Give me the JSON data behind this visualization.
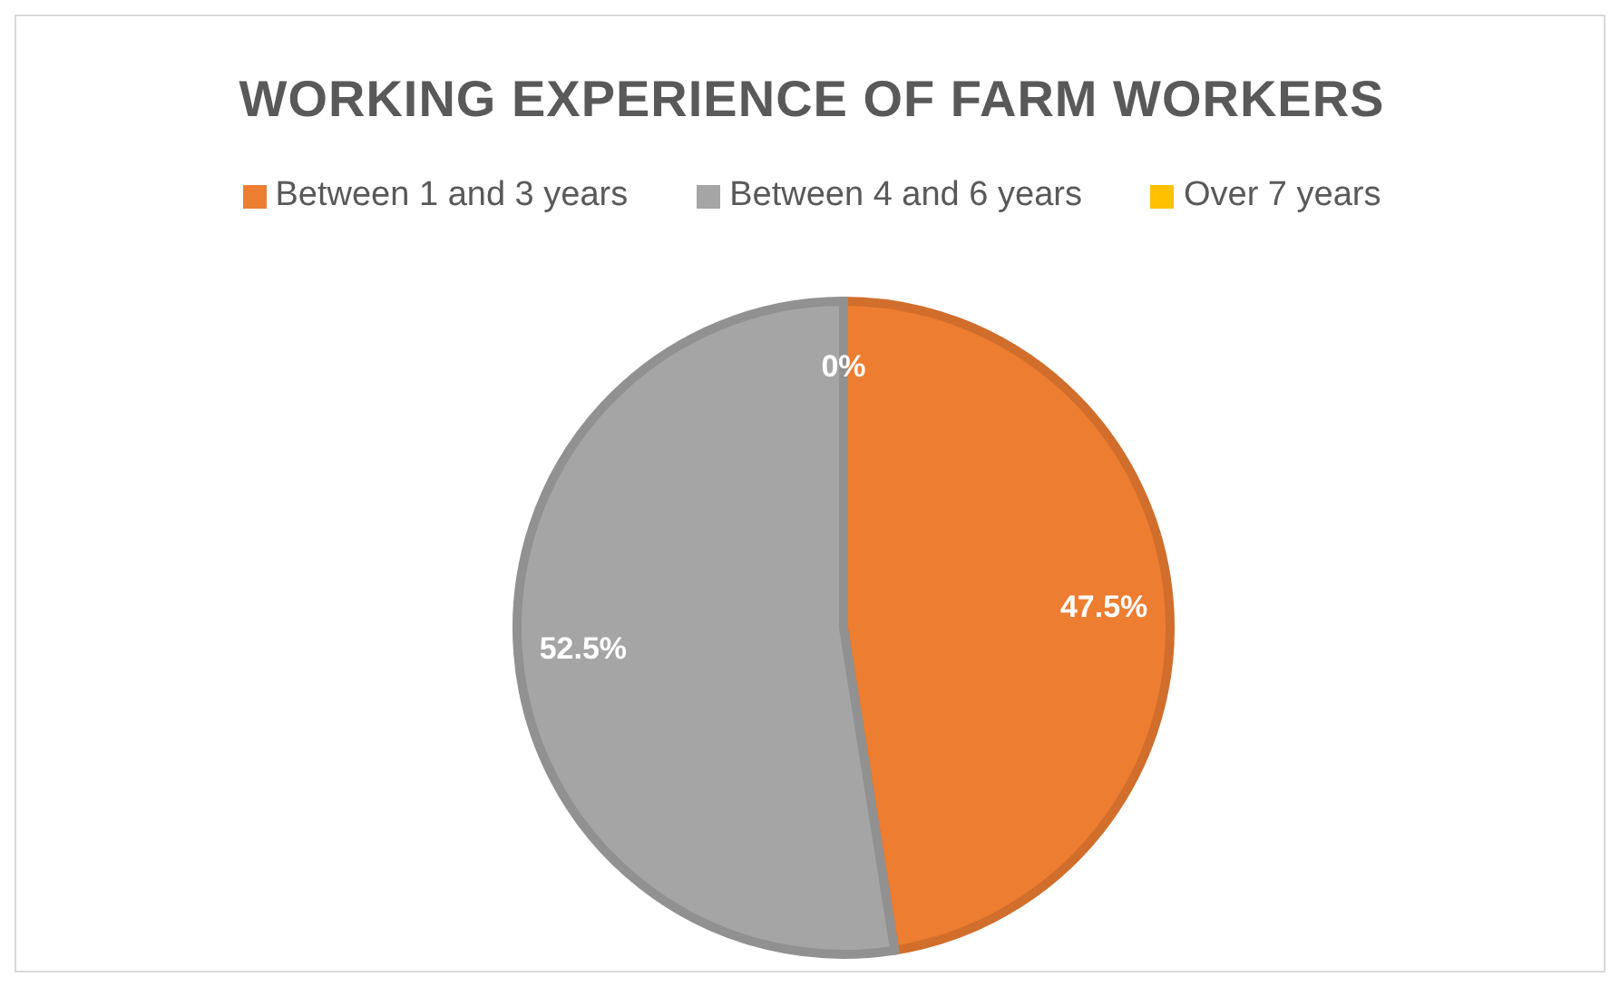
{
  "chart_data": {
    "type": "pie",
    "title": "WORKING EXPERIENCE OF FARM WORKERS",
    "categories": [
      "Between 1 and 3 years",
      "Between 4 and 6 years",
      "Over 7 years"
    ],
    "values": [
      47.5,
      52.5,
      0
    ],
    "colors": [
      "#ed7d31",
      "#a5a5a5",
      "#ffc000"
    ],
    "value_labels": [
      "47.5%",
      "52.5%",
      "0%"
    ],
    "legend": "top"
  }
}
